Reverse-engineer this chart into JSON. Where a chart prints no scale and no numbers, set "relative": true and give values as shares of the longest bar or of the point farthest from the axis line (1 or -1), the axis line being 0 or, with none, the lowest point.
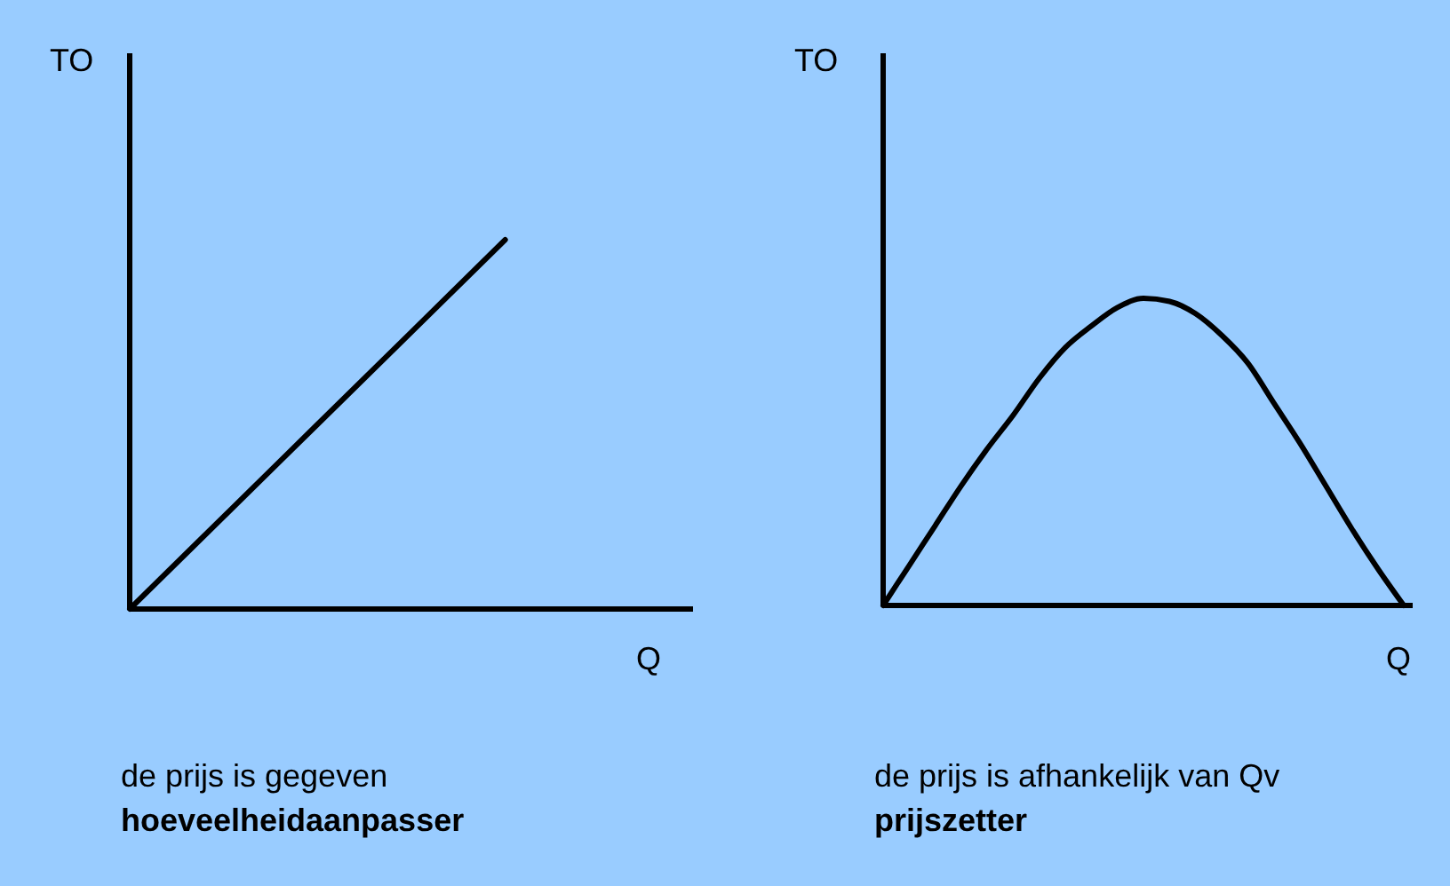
{
  "chart_data": [
    {
      "type": "line",
      "relative": true,
      "ylabel": "TO",
      "xlabel": "Q",
      "categories": [
        null,
        null,
        null,
        null
      ],
      "series": [
        {
          "color": "#000000",
          "values": [
            0,
            0.5,
            1,
            null
          ]
        }
      ],
      "annotations": [
        "de prijs is gegeven",
        "hoeveelheidaanpasser"
      ]
    },
    {
      "type": "line",
      "relative": true,
      "ylabel": "TO",
      "xlabel": "Q",
      "categories": [
        null,
        null,
        null,
        null,
        null,
        null,
        null,
        null,
        null,
        null,
        null,
        null,
        null,
        null,
        null,
        null,
        null,
        null,
        null,
        null,
        null
      ],
      "series": [
        {
          "color": "#000000",
          "values": [
            0,
            0.13,
            0.26,
            0.39,
            0.51,
            0.62,
            0.74,
            0.84,
            0.91,
            0.97,
            1,
            0.99,
            0.95,
            0.88,
            0.79,
            0.66,
            0.53,
            0.39,
            0.25,
            0.12,
            0
          ]
        }
      ],
      "annotations": [
        "de prijs is afhankelijk van Qv",
        "prijszetter"
      ]
    }
  ]
}
